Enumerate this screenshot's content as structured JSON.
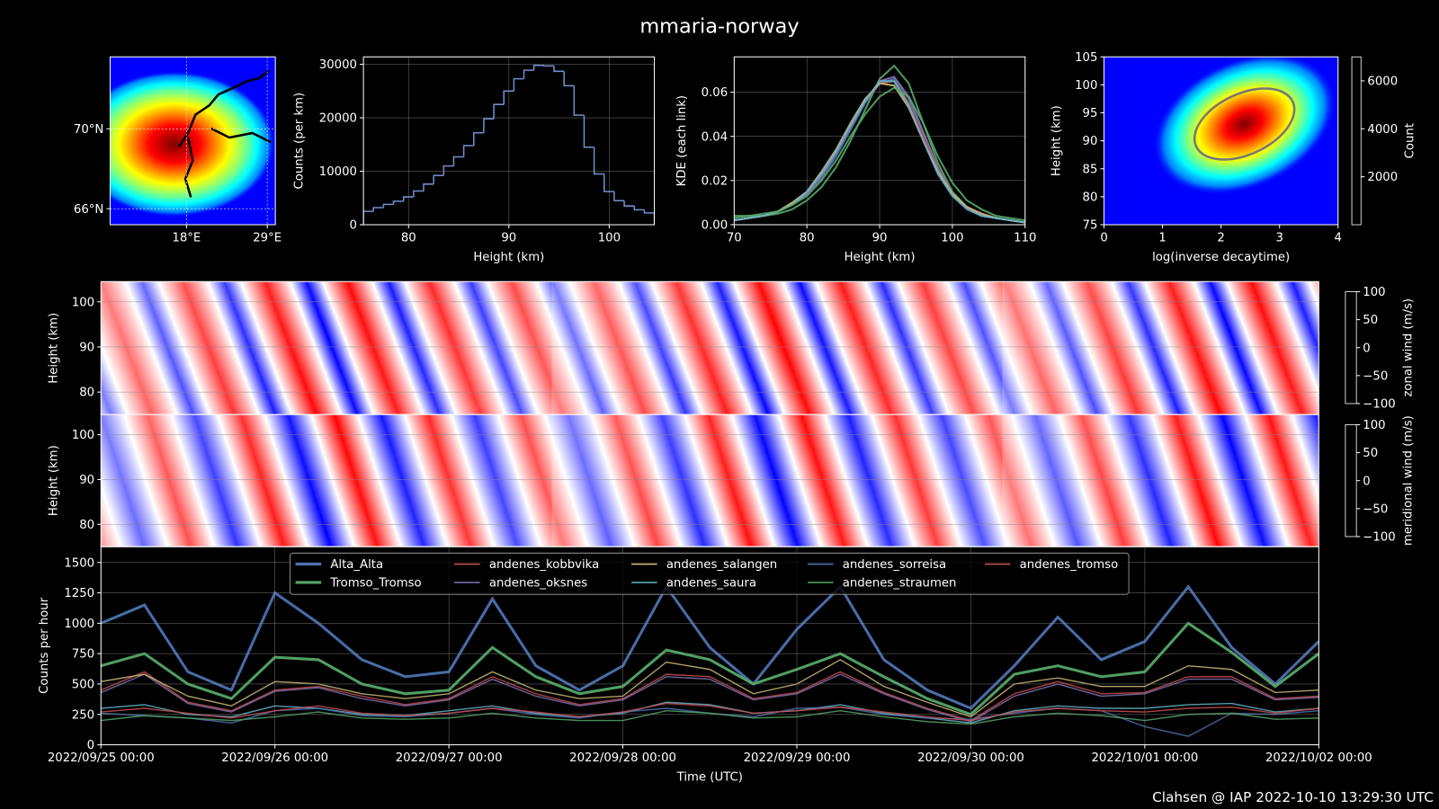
{
  "title": "mmaria-norway",
  "footer": "Clahsen @ IAP 2022-10-10 13:29:30 UTC",
  "chart_data": [
    {
      "type": "map",
      "xlim": [
        7.6,
        30.1
      ],
      "ylim": [
        65.2,
        73.6
      ],
      "xticks": [
        {
          "value": 18,
          "label": "18°E"
        },
        {
          "value": 29,
          "label": "29°E"
        }
      ],
      "yticks": [
        {
          "value": 66,
          "label": "66°N"
        },
        {
          "value": 70,
          "label": "70°N"
        }
      ],
      "colormap": "jet",
      "grid": true
    },
    {
      "type": "histogram",
      "x_label": "Height (km)",
      "y_label": "Counts (per km)",
      "bins": [
        75.5,
        76.5,
        77.5,
        78.5,
        79.5,
        80.5,
        81.5,
        82.5,
        83.5,
        84.5,
        85.5,
        86.5,
        87.5,
        88.5,
        89.5,
        90.5,
        91.5,
        92.5,
        93.5,
        94.5,
        95.5,
        96.5,
        97.5,
        98.5,
        99.5,
        100.5,
        101.5,
        102.5,
        103.5,
        104.5
      ],
      "values": [
        2500,
        3200,
        3800,
        4400,
        5200,
        6300,
        7600,
        9200,
        11000,
        12700,
        14800,
        17200,
        19800,
        22500,
        25000,
        27300,
        28900,
        29800,
        29700,
        28700,
        26000,
        20500,
        14500,
        9500,
        6200,
        4500,
        3500,
        2800,
        2200
      ],
      "color": "#6f8fd0",
      "xlim": [
        75.5,
        104.5
      ],
      "ylim": [
        0,
        31400
      ],
      "xticks": [
        80,
        90,
        100
      ],
      "yticks": [
        0,
        10000,
        20000,
        30000
      ],
      "grid": true
    },
    {
      "type": "line",
      "x_label": "Height (km)",
      "y_label": "KDE (each link)",
      "x": [
        70,
        72,
        74,
        76,
        78,
        80,
        82,
        84,
        86,
        88,
        90,
        92,
        94,
        96,
        98,
        100,
        102,
        104,
        106,
        108,
        110
      ],
      "series": [
        {
          "color": "#4c72b0",
          "values": [
            0.002,
            0.003,
            0.004,
            0.006,
            0.009,
            0.014,
            0.021,
            0.031,
            0.043,
            0.055,
            0.064,
            0.066,
            0.057,
            0.041,
            0.025,
            0.014,
            0.008,
            0.005,
            0.003,
            0.002,
            0.001
          ]
        },
        {
          "color": "#55a868",
          "values": [
            0.003,
            0.004,
            0.004,
            0.005,
            0.007,
            0.011,
            0.017,
            0.026,
            0.038,
            0.052,
            0.066,
            0.072,
            0.064,
            0.046,
            0.028,
            0.015,
            0.008,
            0.005,
            0.003,
            0.002,
            0.001
          ]
        },
        {
          "color": "#c44e52",
          "values": [
            0.002,
            0.003,
            0.004,
            0.006,
            0.01,
            0.015,
            0.023,
            0.033,
            0.045,
            0.056,
            0.064,
            0.065,
            0.055,
            0.04,
            0.025,
            0.014,
            0.008,
            0.005,
            0.003,
            0.002,
            0.001
          ]
        },
        {
          "color": "#8172b2",
          "values": [
            0.002,
            0.003,
            0.004,
            0.006,
            0.009,
            0.014,
            0.022,
            0.032,
            0.044,
            0.056,
            0.065,
            0.067,
            0.058,
            0.042,
            0.026,
            0.014,
            0.008,
            0.004,
            0.003,
            0.002,
            0.001
          ]
        },
        {
          "color": "#ccb974",
          "values": [
            0.002,
            0.003,
            0.004,
            0.006,
            0.01,
            0.015,
            0.024,
            0.034,
            0.046,
            0.057,
            0.064,
            0.063,
            0.053,
            0.038,
            0.024,
            0.014,
            0.008,
            0.005,
            0.003,
            0.002,
            0.001
          ]
        },
        {
          "color": "#64b5cd",
          "values": [
            0.002,
            0.003,
            0.004,
            0.006,
            0.009,
            0.015,
            0.023,
            0.033,
            0.045,
            0.056,
            0.065,
            0.065,
            0.054,
            0.038,
            0.023,
            0.013,
            0.007,
            0.004,
            0.003,
            0.002,
            0.001
          ]
        },
        {
          "color": "#55a868",
          "values": [
            0.004,
            0.004,
            0.005,
            0.006,
            0.009,
            0.013,
            0.02,
            0.029,
            0.04,
            0.05,
            0.058,
            0.062,
            0.058,
            0.046,
            0.031,
            0.019,
            0.011,
            0.007,
            0.004,
            0.003,
            0.002
          ]
        }
      ],
      "xlim": [
        70,
        110
      ],
      "ylim": [
        0,
        0.076
      ],
      "xticks": [
        70,
        80,
        90,
        100,
        110
      ],
      "yticks": [
        {
          "value": 0,
          "label": "0.00"
        },
        {
          "value": 0.02,
          "label": "0.02"
        },
        {
          "value": 0.04,
          "label": "0.04"
        },
        {
          "value": 0.06,
          "label": "0.06"
        }
      ],
      "grid": true
    },
    {
      "type": "hist2d",
      "x_label": "log(inverse decaytime)",
      "y_label": "Height (km)",
      "colorbar_label": "Count",
      "xlim": [
        0,
        4
      ],
      "ylim": [
        75,
        105
      ],
      "xticks": [
        0,
        1,
        2,
        3,
        4
      ],
      "yticks": [
        75,
        80,
        85,
        90,
        95,
        100,
        105
      ],
      "clim": [
        0,
        7000
      ],
      "cticks": [
        2000,
        4000,
        6000
      ],
      "colormap": "jet",
      "grid": false
    },
    {
      "type": "heatmap",
      "y_label": "Height (km)",
      "colorbar_label": "zonal wind (m/s)",
      "xlim": [
        0,
        7
      ],
      "ylim": [
        75,
        104.5
      ],
      "yticks": [
        80,
        90,
        100
      ],
      "clim": [
        -100,
        100
      ],
      "cticks": [
        {
          "value": -100,
          "label": "−100"
        },
        {
          "value": -50,
          "label": "−50"
        },
        0,
        50,
        100
      ],
      "colormap": "bwr",
      "grid": true
    },
    {
      "type": "heatmap",
      "y_label": "Height (km)",
      "colorbar_label": "meridional wind (m/s)",
      "xlim": [
        0,
        7
      ],
      "ylim": [
        75,
        104.5
      ],
      "yticks": [
        80,
        90,
        100
      ],
      "clim": [
        -100,
        100
      ],
      "cticks": [
        {
          "value": -100,
          "label": "−100"
        },
        {
          "value": -50,
          "label": "−50"
        },
        0,
        50,
        100
      ],
      "colormap": "bwr",
      "grid": true
    },
    {
      "type": "timeseries",
      "x_label": "Time (UTC)",
      "y_label": "Counts per hour",
      "x": [
        0,
        0.25,
        0.5,
        0.75,
        1,
        1.25,
        1.5,
        1.75,
        2,
        2.25,
        2.5,
        2.75,
        3,
        3.25,
        3.5,
        3.75,
        4,
        4.25,
        4.5,
        4.75,
        5,
        5.25,
        5.5,
        5.75,
        6,
        6.25,
        6.5,
        6.75,
        7
      ],
      "series": [
        {
          "name": "Alta_Alta",
          "color": "#4c72b0",
          "values": [
            1000,
            1150,
            600,
            450,
            1250,
            1000,
            700,
            560,
            600,
            1200,
            650,
            450,
            650,
            1300,
            800,
            500,
            950,
            1300,
            700,
            450,
            300,
            650,
            1050,
            700,
            850,
            1300,
            800,
            500,
            850
          ]
        },
        {
          "name": "Tromso_Tromso",
          "color": "#55a868",
          "values": [
            650,
            750,
            500,
            380,
            720,
            700,
            500,
            420,
            450,
            800,
            560,
            420,
            480,
            780,
            700,
            500,
            620,
            750,
            560,
            380,
            250,
            580,
            650,
            560,
            600,
            1000,
            760,
            480,
            750
          ]
        },
        {
          "name": "andenes_kobbvika",
          "color": "#c44e52",
          "values": [
            450,
            600,
            350,
            280,
            450,
            480,
            400,
            330,
            380,
            560,
            420,
            330,
            380,
            580,
            560,
            380,
            430,
            600,
            430,
            300,
            200,
            420,
            520,
            420,
            430,
            560,
            560,
            380,
            400
          ]
        },
        {
          "name": "andenes_oksnes",
          "color": "#8172b2",
          "values": [
            430,
            580,
            340,
            270,
            440,
            470,
            380,
            320,
            370,
            540,
            400,
            320,
            370,
            560,
            540,
            370,
            420,
            580,
            420,
            290,
            190,
            400,
            500,
            400,
            420,
            540,
            540,
            370,
            390
          ]
        },
        {
          "name": "andenes_salangen",
          "color": "#ccb974",
          "values": [
            520,
            580,
            400,
            320,
            520,
            500,
            420,
            380,
            420,
            600,
            450,
            380,
            400,
            680,
            620,
            420,
            500,
            700,
            480,
            350,
            230,
            500,
            550,
            480,
            480,
            650,
            620,
            430,
            450
          ]
        },
        {
          "name": "andenes_saura",
          "color": "#64b5cd",
          "values": [
            300,
            330,
            250,
            230,
            320,
            300,
            250,
            240,
            280,
            320,
            260,
            230,
            260,
            350,
            330,
            260,
            280,
            330,
            260,
            220,
            180,
            280,
            320,
            300,
            300,
            330,
            340,
            270,
            300
          ]
        },
        {
          "name": "andenes_sorreisa",
          "color": "#4c72b0",
          "values": [
            260,
            240,
            220,
            180,
            280,
            300,
            240,
            230,
            260,
            300,
            250,
            220,
            270,
            300,
            260,
            230,
            300,
            310,
            250,
            220,
            210,
            260,
            300,
            280,
            150,
            70,
            260,
            250,
            280
          ]
        },
        {
          "name": "andenes_straumen",
          "color": "#55a868",
          "values": [
            200,
            240,
            220,
            200,
            230,
            270,
            220,
            210,
            220,
            260,
            220,
            200,
            200,
            280,
            260,
            220,
            230,
            280,
            230,
            190,
            170,
            230,
            260,
            240,
            200,
            250,
            260,
            210,
            220
          ]
        },
        {
          "name": "andenes_tromso",
          "color": "#c44e52",
          "values": [
            270,
            300,
            260,
            220,
            280,
            320,
            260,
            240,
            260,
            300,
            270,
            230,
            270,
            340,
            320,
            260,
            280,
            310,
            270,
            230,
            200,
            270,
            300,
            280,
            270,
            300,
            310,
            260,
            300
          ]
        }
      ],
      "xlim": [
        0,
        7
      ],
      "ylim": [
        0,
        1630
      ],
      "xticks": [
        {
          "value": 0,
          "label": "2022/09/25 00:00"
        },
        {
          "value": 1,
          "label": "2022/09/26 00:00"
        },
        {
          "value": 2,
          "label": "2022/09/27 00:00"
        },
        {
          "value": 3,
          "label": "2022/09/28 00:00"
        },
        {
          "value": 4,
          "label": "2022/09/29 00:00"
        },
        {
          "value": 5,
          "label": "2022/09/30 00:00"
        },
        {
          "value": 6,
          "label": "2022/10/01 00:00"
        },
        {
          "value": 7,
          "label": "2022/10/02 00:00"
        }
      ],
      "yticks": [
        0,
        250,
        500,
        750,
        1000,
        1250,
        1500
      ],
      "legend": "upper center",
      "grid": true
    }
  ]
}
